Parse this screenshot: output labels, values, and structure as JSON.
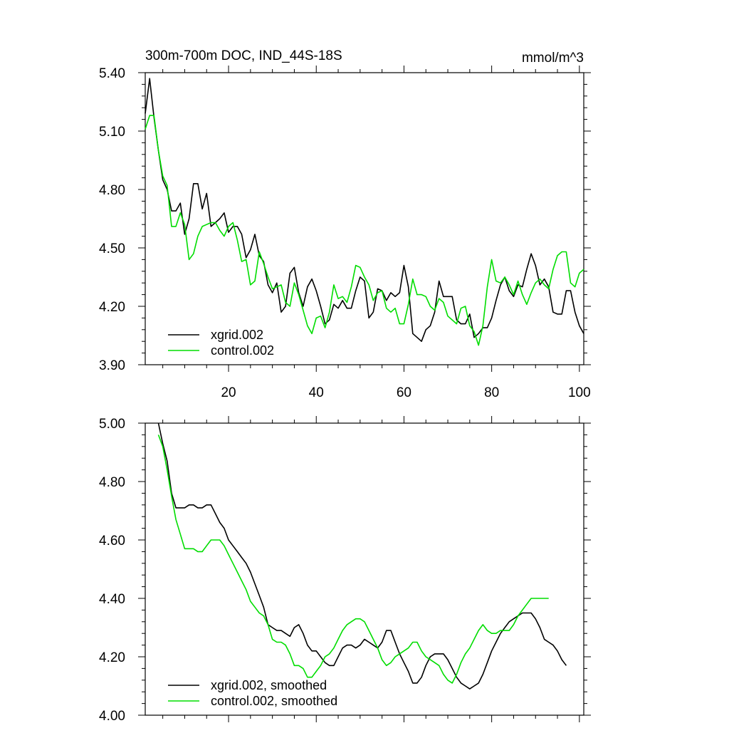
{
  "chart_data": [
    {
      "type": "line",
      "title": "300m-700m DOC, IND_44S-18S",
      "units": "mmol/m^3",
      "xlim": [
        1,
        101
      ],
      "ylim": [
        3.9,
        5.4
      ],
      "xticks": [
        20,
        40,
        60,
        80,
        100
      ],
      "yticks": [
        3.9,
        4.2,
        4.5,
        4.8,
        5.1,
        5.4
      ],
      "ytick_labels": [
        "3.90",
        "4.20",
        "4.50",
        "4.80",
        "5.10",
        "5.40"
      ],
      "grid": false,
      "legend_position": "bottom-left",
      "x_start": 1,
      "series": [
        {
          "name": "xgrid.002",
          "color": "#000000",
          "values": [
            5.19,
            5.37,
            5.17,
            5.0,
            4.85,
            4.8,
            4.69,
            4.69,
            4.73,
            4.57,
            4.65,
            4.83,
            4.83,
            4.7,
            4.78,
            4.61,
            4.63,
            4.65,
            4.68,
            4.58,
            4.61,
            4.61,
            4.57,
            4.45,
            4.49,
            4.57,
            4.46,
            4.43,
            4.31,
            4.27,
            4.32,
            4.17,
            4.2,
            4.37,
            4.4,
            4.27,
            4.2,
            4.3,
            4.34,
            4.28,
            4.2,
            4.11,
            4.13,
            4.21,
            4.19,
            4.23,
            4.19,
            4.19,
            4.28,
            4.35,
            4.33,
            4.14,
            4.17,
            4.29,
            4.28,
            4.23,
            4.27,
            4.25,
            4.27,
            4.41,
            4.3,
            4.06,
            4.04,
            4.02,
            4.08,
            4.1,
            4.17,
            4.33,
            4.25,
            4.25,
            4.25,
            4.13,
            4.11,
            4.11,
            4.16,
            4.04,
            4.06,
            4.09,
            4.09,
            4.14,
            4.23,
            4.31,
            4.35,
            4.28,
            4.25,
            4.31,
            4.3,
            4.39,
            4.47,
            4.41,
            4.31,
            4.34,
            4.3,
            4.17,
            4.16,
            4.16,
            4.28,
            4.28,
            4.17,
            4.1,
            4.06
          ]
        },
        {
          "name": "control.002",
          "color": "#00dd00",
          "values": [
            5.11,
            5.18,
            5.18,
            5.0,
            4.87,
            4.82,
            4.61,
            4.61,
            4.68,
            4.62,
            4.44,
            4.47,
            4.56,
            4.61,
            4.62,
            4.63,
            4.63,
            4.59,
            4.56,
            4.61,
            4.63,
            4.54,
            4.43,
            4.44,
            4.31,
            4.33,
            4.48,
            4.42,
            4.35,
            4.29,
            4.3,
            4.31,
            4.22,
            4.2,
            4.32,
            4.26,
            4.18,
            4.1,
            4.06,
            4.14,
            4.15,
            4.09,
            4.17,
            4.31,
            4.24,
            4.25,
            4.22,
            4.3,
            4.41,
            4.4,
            4.35,
            4.31,
            4.23,
            4.27,
            4.28,
            4.19,
            4.17,
            4.19,
            4.11,
            4.11,
            4.21,
            4.34,
            4.26,
            4.26,
            4.25,
            4.2,
            4.18,
            4.24,
            4.22,
            4.15,
            4.13,
            4.11,
            4.19,
            4.2,
            4.1,
            4.07,
            4.0,
            4.1,
            4.3,
            4.44,
            4.33,
            4.32,
            4.35,
            4.31,
            4.26,
            4.33,
            4.26,
            4.21,
            4.27,
            4.32,
            4.34,
            4.31,
            4.29,
            4.39,
            4.46,
            4.48,
            4.48,
            4.32,
            4.3,
            4.37,
            4.39
          ]
        }
      ]
    },
    {
      "type": "line",
      "xlim": [
        1,
        101
      ],
      "ylim": [
        4.0,
        5.0
      ],
      "xticks": [
        20,
        40,
        60,
        80,
        100
      ],
      "yticks": [
        4.0,
        4.2,
        4.4,
        4.6,
        4.8,
        5.0
      ],
      "ytick_labels": [
        "4.00",
        "4.20",
        "4.40",
        "4.60",
        "4.80",
        "5.00"
      ],
      "grid": false,
      "legend_position": "bottom-left",
      "x_start": 4,
      "series": [
        {
          "name": "xgrid.002, smoothed",
          "color": "#000000",
          "values": [
            5.0,
            4.93,
            4.87,
            4.76,
            4.71,
            4.71,
            4.71,
            4.72,
            4.72,
            4.71,
            4.71,
            4.72,
            4.72,
            4.69,
            4.66,
            4.64,
            4.6,
            4.58,
            4.56,
            4.54,
            4.52,
            4.49,
            4.45,
            4.41,
            4.37,
            4.31,
            4.3,
            4.29,
            4.29,
            4.28,
            4.27,
            4.3,
            4.31,
            4.28,
            4.24,
            4.22,
            4.22,
            4.2,
            4.18,
            4.17,
            4.17,
            4.2,
            4.23,
            4.24,
            4.24,
            4.23,
            4.24,
            4.26,
            4.25,
            4.24,
            4.23,
            4.25,
            4.29,
            4.29,
            4.25,
            4.21,
            4.18,
            4.15,
            4.11,
            4.11,
            4.13,
            4.17,
            4.2,
            4.21,
            4.21,
            4.21,
            4.19,
            4.16,
            4.13,
            4.11,
            4.1,
            4.09,
            4.1,
            4.11,
            4.14,
            4.18,
            4.22,
            4.25,
            4.28,
            4.3,
            4.32,
            4.33,
            4.34,
            4.35,
            4.35,
            4.35,
            4.33,
            4.3,
            4.26,
            4.25,
            4.24,
            4.22,
            4.19,
            4.17
          ]
        },
        {
          "name": "control.002, smoothed",
          "color": "#00dd00",
          "values": [
            4.96,
            4.92,
            4.84,
            4.75,
            4.67,
            4.62,
            4.57,
            4.57,
            4.57,
            4.56,
            4.56,
            4.58,
            4.6,
            4.6,
            4.6,
            4.58,
            4.55,
            4.52,
            4.49,
            4.46,
            4.43,
            4.39,
            4.37,
            4.35,
            4.34,
            4.31,
            4.26,
            4.25,
            4.25,
            4.24,
            4.21,
            4.17,
            4.17,
            4.16,
            4.13,
            4.13,
            4.15,
            4.17,
            4.2,
            4.21,
            4.23,
            4.26,
            4.29,
            4.31,
            4.32,
            4.33,
            4.33,
            4.32,
            4.29,
            4.26,
            4.23,
            4.19,
            4.17,
            4.18,
            4.2,
            4.21,
            4.22,
            4.23,
            4.25,
            4.25,
            4.22,
            4.2,
            4.19,
            4.18,
            4.17,
            4.14,
            4.12,
            4.11,
            4.14,
            4.18,
            4.21,
            4.23,
            4.26,
            4.29,
            4.31,
            4.29,
            4.28,
            4.28,
            4.29,
            4.29,
            4.29,
            4.31,
            4.34,
            4.36,
            4.38,
            4.4,
            4.4,
            4.4,
            4.4,
            4.4
          ]
        }
      ]
    }
  ]
}
